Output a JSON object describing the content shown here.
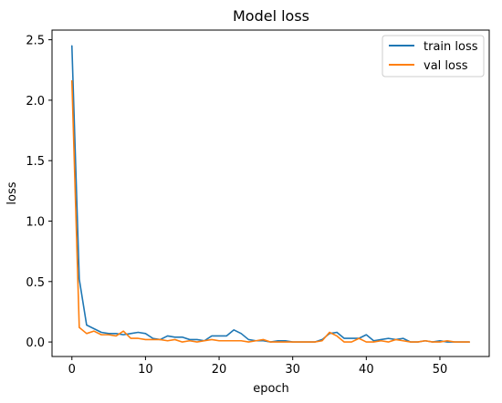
{
  "chart_data": {
    "type": "line",
    "title": "Model loss",
    "xlabel": "epoch",
    "ylabel": "loss",
    "xlim": [
      -2.7,
      56.7
    ],
    "ylim": [
      -0.12,
      2.58
    ],
    "xticks": [
      0,
      10,
      20,
      30,
      40,
      50
    ],
    "yticks": [
      0.0,
      0.5,
      1.0,
      1.5,
      2.0,
      2.5
    ],
    "xtick_labels": [
      "0",
      "10",
      "20",
      "30",
      "40",
      "50"
    ],
    "ytick_labels": [
      "0.0",
      "0.5",
      "1.0",
      "1.5",
      "2.0",
      "2.5"
    ],
    "grid": false,
    "legend_position": "top-right",
    "x": [
      0,
      1,
      2,
      3,
      4,
      5,
      6,
      7,
      8,
      9,
      10,
      11,
      12,
      13,
      14,
      15,
      16,
      17,
      18,
      19,
      20,
      21,
      22,
      23,
      24,
      25,
      26,
      27,
      28,
      29,
      30,
      31,
      32,
      33,
      34,
      35,
      36,
      37,
      38,
      39,
      40,
      41,
      42,
      43,
      44,
      45,
      46,
      47,
      48,
      49,
      50,
      51,
      52,
      53,
      54
    ],
    "series": [
      {
        "name": "train loss",
        "color": "#1f77b4",
        "values": [
          2.45,
          0.52,
          0.14,
          0.11,
          0.08,
          0.07,
          0.07,
          0.06,
          0.07,
          0.08,
          0.07,
          0.03,
          0.02,
          0.05,
          0.04,
          0.04,
          0.02,
          0.02,
          0.01,
          0.05,
          0.05,
          0.05,
          0.1,
          0.07,
          0.02,
          0.01,
          0.01,
          0.0,
          0.01,
          0.01,
          0.0,
          0.0,
          0.0,
          0.0,
          0.02,
          0.07,
          0.08,
          0.03,
          0.03,
          0.03,
          0.06,
          0.01,
          0.02,
          0.03,
          0.02,
          0.03,
          0.0,
          0.0,
          0.01,
          0.0,
          0.01,
          0.0,
          0.0,
          0.0,
          0.0
        ]
      },
      {
        "name": "val loss",
        "color": "#ff7f0e",
        "values": [
          2.16,
          0.12,
          0.07,
          0.09,
          0.06,
          0.06,
          0.05,
          0.09,
          0.03,
          0.03,
          0.02,
          0.02,
          0.02,
          0.01,
          0.02,
          0.0,
          0.01,
          0.0,
          0.01,
          0.02,
          0.01,
          0.01,
          0.01,
          0.01,
          0.0,
          0.01,
          0.02,
          0.0,
          0.0,
          0.0,
          0.0,
          0.0,
          0.0,
          0.0,
          0.01,
          0.08,
          0.05,
          0.0,
          0.0,
          0.03,
          0.0,
          0.0,
          0.01,
          0.0,
          0.02,
          0.01,
          0.0,
          0.0,
          0.01,
          0.0,
          0.0,
          0.01,
          0.0,
          0.0,
          0.0
        ]
      }
    ]
  }
}
